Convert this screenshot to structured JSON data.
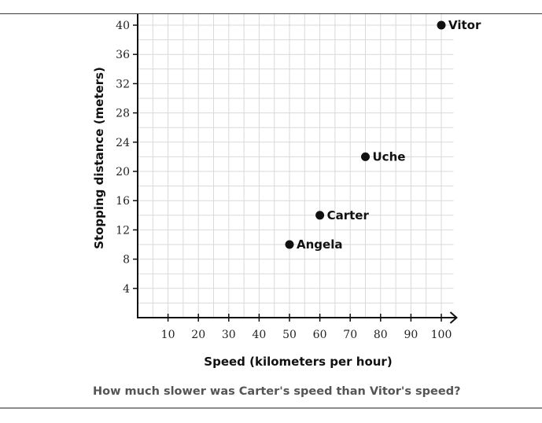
{
  "question": "How much slower was Carter's speed than Vitor's speed?",
  "chart_data": {
    "type": "scatter",
    "xlabel": "Speed (kilometers per hour)",
    "ylabel": "Stopping distance (meters)",
    "xlim": [
      0,
      104
    ],
    "ylim": [
      0,
      40
    ],
    "x_ticks": [
      10,
      20,
      30,
      40,
      50,
      60,
      70,
      80,
      90,
      100
    ],
    "y_ticks": [
      4,
      8,
      12,
      16,
      20,
      24,
      28,
      32,
      36,
      40
    ],
    "grid": true,
    "points": [
      {
        "name": "Angela",
        "x": 50,
        "y": 10
      },
      {
        "name": "Carter",
        "x": 60,
        "y": 14
      },
      {
        "name": "Uche",
        "x": 75,
        "y": 22
      },
      {
        "name": "Vitor",
        "x": 100,
        "y": 40
      }
    ],
    "colors": {
      "grid": "#d9d9d9",
      "axis": "#111111",
      "point": "#111111"
    }
  }
}
